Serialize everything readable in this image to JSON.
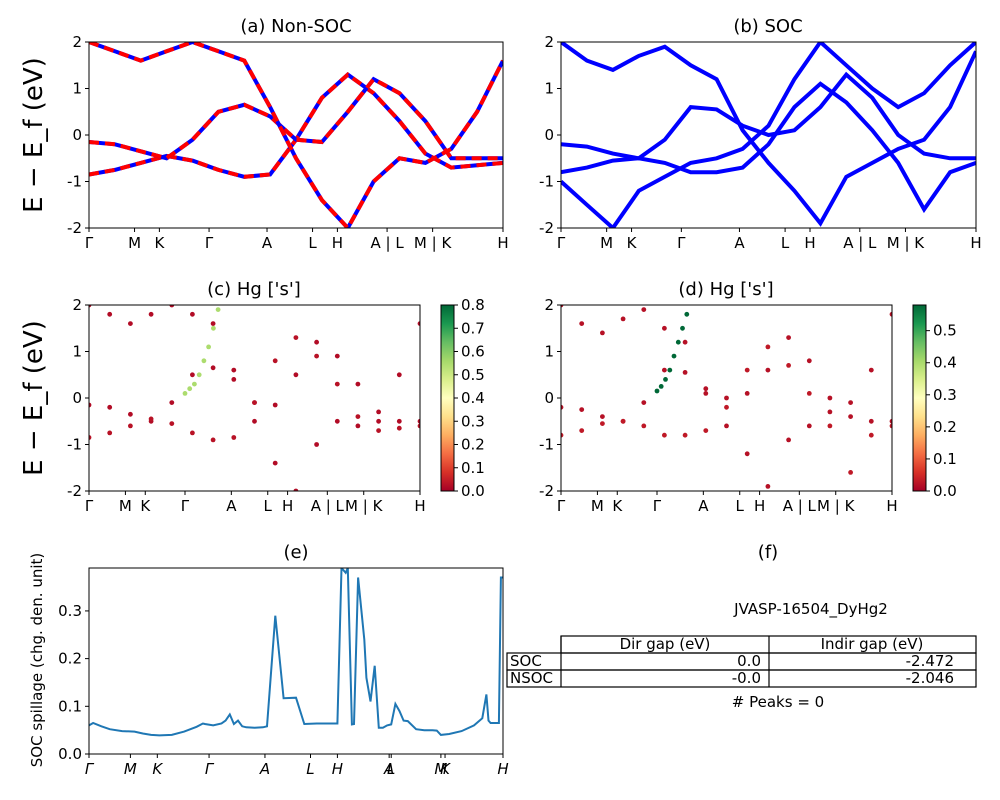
{
  "colors": {
    "nonsoc_a": "#0000ff",
    "nonsoc_b": "#ff0000",
    "soc": "#0000ff",
    "spillage": "#1f77b4",
    "cmap": "RdYlGn"
  },
  "panels": {
    "a": {
      "title": "(a) Non-SOC",
      "ylabel": "E − E_f (eV)"
    },
    "b": {
      "title": "(b) SOC"
    },
    "c": {
      "title": "(c)  Hg ['s']",
      "ylabel": "E − E_f (eV)"
    },
    "d": {
      "title": "(d) Hg ['s']"
    },
    "e": {
      "title": "(e)",
      "ylabel": "SOC spillage (chg. den. unit)"
    },
    "f": {
      "title": "(f)",
      "material": "JVASP-16504_DyHg2",
      "peaks": "# Peaks = 0"
    }
  },
  "table": {
    "headers": [
      "",
      "Dir gap (eV)",
      "Indir gap (eV)"
    ],
    "rows": [
      {
        "label": "SOC",
        "dir": "0.0",
        "indir": "-2.472"
      },
      {
        "label": "NSOC",
        "dir": "-0.0",
        "indir": "-2.046"
      }
    ]
  },
  "chart_data": [
    {
      "id": "a",
      "type": "line",
      "title": "(a) Non-SOC",
      "ylim": [
        -2,
        2
      ],
      "yticks": [
        "-2",
        "-1",
        "0",
        "1",
        "2"
      ],
      "xticks": [
        "Γ",
        "M",
        "K",
        "Γ",
        "A",
        "L",
        "H",
        "A | L",
        "M | K",
        "H"
      ],
      "xtick_pos": [
        0,
        0.11,
        0.17,
        0.29,
        0.43,
        0.54,
        0.6,
        0.72,
        0.83,
        1.0
      ],
      "series": [
        {
          "values": [
            -0.85,
            -0.75,
            -0.6,
            -0.45,
            -0.55,
            -0.75,
            -0.9,
            -0.85,
            -0.1,
            0.8,
            1.3,
            0.9,
            0.3,
            -0.4,
            -0.7,
            -0.65,
            -0.6
          ]
        },
        {
          "values": [
            -0.15,
            -0.2,
            -0.35,
            -0.5,
            -0.1,
            0.5,
            0.65,
            0.4,
            -0.1,
            -0.15,
            0.5,
            1.2,
            0.9,
            0.3,
            -0.5,
            -0.5,
            -0.5
          ]
        },
        {
          "values": [
            2.0,
            1.8,
            1.6,
            1.8,
            2.0,
            1.8,
            1.6,
            0.6,
            -0.5,
            -1.4,
            -2.0,
            -1.0,
            -0.5,
            -0.6,
            -0.3,
            0.5,
            1.6
          ]
        }
      ]
    },
    {
      "id": "b",
      "type": "line",
      "title": "(b) SOC",
      "ylim": [
        -2,
        2
      ],
      "yticks": [
        "-2",
        "-1",
        "0",
        "1",
        "2"
      ],
      "xticks": [
        "Γ",
        "M",
        "K",
        "Γ",
        "A",
        "L",
        "H",
        "A | L",
        "M | K",
        "H"
      ],
      "xtick_pos": [
        0,
        0.11,
        0.17,
        0.29,
        0.43,
        0.54,
        0.6,
        0.72,
        0.83,
        1.0
      ],
      "series": [
        {
          "values": [
            -0.2,
            -0.25,
            -0.4,
            -0.5,
            -0.1,
            0.6,
            0.55,
            0.2,
            0.0,
            0.1,
            0.6,
            1.3,
            0.8,
            0.0,
            -0.4,
            -0.5,
            -0.5
          ]
        },
        {
          "values": [
            -0.8,
            -0.7,
            -0.55,
            -0.5,
            -0.6,
            -0.8,
            -0.8,
            -0.7,
            -0.2,
            0.6,
            1.1,
            0.7,
            0.1,
            -0.6,
            -1.6,
            -0.8,
            -0.6
          ]
        },
        {
          "values": [
            2.0,
            1.6,
            1.4,
            1.7,
            1.9,
            1.5,
            1.2,
            0.1,
            -0.6,
            -1.2,
            -1.9,
            -0.9,
            -0.6,
            -0.3,
            -0.1,
            0.6,
            1.8
          ]
        },
        {
          "values": [
            -1.0,
            -1.5,
            -2.0,
            -1.2,
            -0.9,
            -0.6,
            -0.5,
            -0.3,
            0.2,
            1.2,
            2.0,
            1.5,
            1.0,
            0.6,
            0.9,
            1.5,
            2.0
          ]
        }
      ]
    },
    {
      "id": "c",
      "type": "scatter",
      "title": "(c)  Hg ['s']",
      "ylim": [
        -2,
        2
      ],
      "yticks": [
        "-2",
        "-1",
        "0",
        "1",
        "2"
      ],
      "xticks": [
        "Γ",
        "M",
        "K",
        "Γ",
        "A",
        "L",
        "H",
        "A | L",
        "M | K",
        "H"
      ],
      "xtick_pos": [
        0,
        0.11,
        0.17,
        0.29,
        0.43,
        0.54,
        0.6,
        0.72,
        0.83,
        1.0
      ],
      "colorbar": {
        "min": 0.0,
        "max": 0.8,
        "ticks": [
          "0.0",
          "0.1",
          "0.2",
          "0.3",
          "0.4",
          "0.5",
          "0.6",
          "0.7",
          "0.8"
        ]
      },
      "series": [
        {
          "values": [
            -0.15,
            -0.2,
            -0.35,
            -0.5,
            -0.1,
            0.5,
            0.65,
            0.4,
            -0.1,
            -0.15,
            0.5,
            1.2,
            0.9,
            0.3,
            -0.5,
            -0.5,
            -0.5
          ],
          "weight": 0.02
        },
        {
          "values": [
            -0.85,
            -0.75,
            -0.6,
            -0.45,
            -0.55,
            -0.75,
            -0.9,
            -0.85,
            -0.1,
            0.8,
            1.3,
            0.9,
            0.3,
            -0.4,
            -0.7,
            -0.65,
            -0.6
          ],
          "weight": 0.03
        },
        {
          "values": [
            2.0,
            1.8,
            1.6,
            1.8,
            2.0,
            1.8,
            1.6,
            0.6,
            -0.5,
            -1.4,
            -2.0,
            -1.0,
            -0.5,
            -0.6,
            -0.3,
            0.5,
            1.6
          ],
          "weight": 0.02
        },
        {
          "values": [
            0.1,
            0.2,
            0.3,
            0.5,
            0.8,
            1.1,
            1.5,
            1.9
          ],
          "x_start": 0.29,
          "x_end": 0.39,
          "weight": 0.55
        }
      ]
    },
    {
      "id": "d",
      "type": "scatter",
      "title": "(d) Hg ['s']",
      "ylim": [
        -2,
        2
      ],
      "yticks": [
        "-2",
        "-1",
        "0",
        "1",
        "2"
      ],
      "xticks": [
        "Γ",
        "M",
        "K",
        "Γ",
        "A",
        "L",
        "H",
        "A | L",
        "M | K",
        "H"
      ],
      "xtick_pos": [
        0,
        0.11,
        0.17,
        0.29,
        0.43,
        0.54,
        0.6,
        0.72,
        0.83,
        1.0
      ],
      "colorbar": {
        "min": 0.0,
        "max": 0.58,
        "ticks": [
          "0.0",
          "0.1",
          "0.2",
          "0.3",
          "0.4",
          "0.5"
        ]
      },
      "series": [
        {
          "values": [
            -0.2,
            -0.25,
            -0.4,
            -0.5,
            -0.1,
            0.6,
            0.55,
            0.2,
            0.0,
            0.1,
            0.6,
            1.3,
            0.8,
            0.0,
            -0.4,
            -0.5,
            -0.5
          ],
          "weight": 0.02
        },
        {
          "values": [
            -0.8,
            -0.7,
            -0.55,
            -0.5,
            -0.6,
            -0.8,
            -0.8,
            -0.7,
            -0.2,
            0.6,
            1.1,
            0.7,
            0.1,
            -0.6,
            -1.6,
            -0.8,
            -0.6
          ],
          "weight": 0.03
        },
        {
          "values": [
            2.0,
            1.6,
            1.4,
            1.7,
            1.9,
            1.5,
            1.2,
            0.1,
            -0.6,
            -1.2,
            -1.9,
            -0.9,
            -0.6,
            -0.3,
            -0.1,
            0.6,
            1.8
          ],
          "weight": 0.02
        },
        {
          "values": [
            0.15,
            0.25,
            0.4,
            0.6,
            0.9,
            1.2,
            1.5,
            1.8
          ],
          "x_start": 0.29,
          "x_end": 0.38,
          "weight": 0.58
        }
      ]
    },
    {
      "id": "e",
      "type": "line",
      "title": "(e)",
      "ylabel": "SOC spillage (chg. den. unit)",
      "ylim": [
        0,
        0.39
      ],
      "yticks": [
        0.0,
        0.1,
        0.2,
        0.3
      ],
      "xticks": [
        "Γ",
        "M",
        "K",
        "Γ",
        "A",
        "L",
        "H",
        "A",
        "L",
        "M",
        "K",
        "H"
      ],
      "xtick_pos": [
        0,
        0.1,
        0.165,
        0.29,
        0.425,
        0.535,
        0.6,
        0.725,
        0.73,
        0.85,
        0.86,
        1.0
      ],
      "x": [
        0.0,
        0.01,
        0.03,
        0.05,
        0.08,
        0.11,
        0.13,
        0.15,
        0.17,
        0.2,
        0.23,
        0.26,
        0.275,
        0.28,
        0.3,
        0.32,
        0.33,
        0.34,
        0.35,
        0.36,
        0.37,
        0.38,
        0.4,
        0.42,
        0.43,
        0.45,
        0.47,
        0.5,
        0.52,
        0.55,
        0.6,
        0.61,
        0.62,
        0.625,
        0.635,
        0.64,
        0.65,
        0.665,
        0.67,
        0.68,
        0.69,
        0.7,
        0.71,
        0.72,
        0.73,
        0.74,
        0.75,
        0.76,
        0.77,
        0.79,
        0.81,
        0.83,
        0.84,
        0.85,
        0.87,
        0.9,
        0.93,
        0.95,
        0.96,
        0.965,
        0.97,
        0.98,
        0.99,
        0.995,
        1.0
      ],
      "values": [
        0.06,
        0.065,
        0.058,
        0.052,
        0.048,
        0.047,
        0.043,
        0.04,
        0.039,
        0.04,
        0.047,
        0.057,
        0.064,
        0.063,
        0.06,
        0.064,
        0.07,
        0.083,
        0.063,
        0.07,
        0.058,
        0.056,
        0.055,
        0.056,
        0.058,
        0.29,
        0.117,
        0.118,
        0.063,
        0.064,
        0.064,
        0.39,
        0.38,
        0.39,
        0.062,
        0.063,
        0.37,
        0.24,
        0.16,
        0.11,
        0.185,
        0.055,
        0.055,
        0.06,
        0.062,
        0.105,
        0.09,
        0.07,
        0.069,
        0.052,
        0.05,
        0.05,
        0.049,
        0.04,
        0.042,
        0.048,
        0.06,
        0.075,
        0.125,
        0.07,
        0.065,
        0.065,
        0.065,
        0.37,
        0.37
      ]
    }
  ]
}
